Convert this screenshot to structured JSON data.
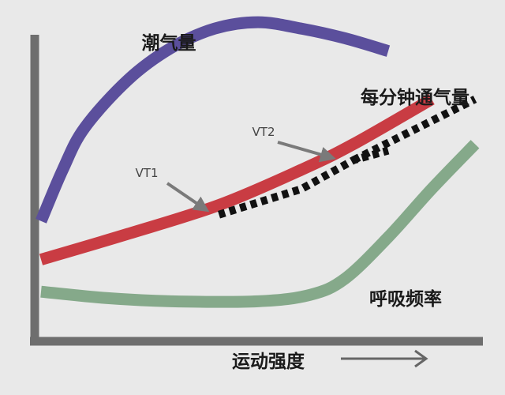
{
  "chart_data": {
    "type": "line",
    "title": "",
    "xlabel": "运动强度",
    "ylabel": "",
    "x_arrow": "→",
    "grid": false,
    "legend": "none",
    "xlim": [
      0,
      100
    ],
    "ylim": [
      0,
      100
    ],
    "series": [
      {
        "name": "潮气量",
        "color": "#5b4f9c",
        "style": "solid",
        "points": [
          [
            0,
            36
          ],
          [
            5,
            52
          ],
          [
            10,
            65
          ],
          [
            20,
            80
          ],
          [
            30,
            90
          ],
          [
            40,
            96
          ],
          [
            50,
            98
          ],
          [
            60,
            96
          ],
          [
            70,
            93
          ],
          [
            80,
            89
          ]
        ]
      },
      {
        "name": "每分钟通气量",
        "color": "#c93c43",
        "style": "solid",
        "points": [
          [
            0,
            24
          ],
          [
            20,
            32
          ],
          [
            41,
            41
          ],
          [
            60,
            52
          ],
          [
            72,
            60
          ],
          [
            90,
            74
          ]
        ]
      },
      {
        "name": "",
        "color": "#111111",
        "style": "dotted",
        "points": [
          [
            41,
            38
          ],
          [
            60,
            46
          ],
          [
            72,
            55
          ],
          [
            80,
            58
          ]
        ]
      },
      {
        "name": "",
        "color": "#111111",
        "style": "dotted",
        "points": [
          [
            72,
            55
          ],
          [
            100,
            74
          ]
        ]
      },
      {
        "name": "呼吸频率",
        "color": "#85a98a",
        "style": "solid",
        "points": [
          [
            0,
            14
          ],
          [
            15,
            12
          ],
          [
            30,
            11
          ],
          [
            50,
            11
          ],
          [
            62,
            13
          ],
          [
            70,
            18
          ],
          [
            80,
            31
          ],
          [
            90,
            46
          ],
          [
            100,
            60
          ]
        ]
      }
    ],
    "annotations": [
      {
        "text": "VT1",
        "x": 41,
        "y": 41
      },
      {
        "text": "VT2",
        "x": 72,
        "y": 60
      }
    ]
  }
}
